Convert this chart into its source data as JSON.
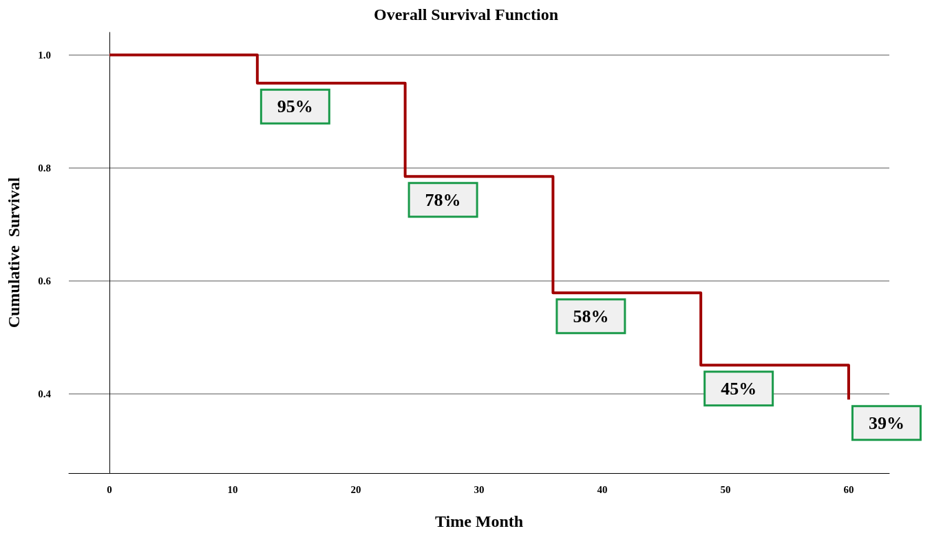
{
  "chart_data": {
    "type": "step",
    "title": "Overall Survival Function",
    "xlabel": "Time Month",
    "ylabel": "Cumulative  Survival",
    "x": [
      0,
      12,
      24,
      36,
      48,
      60
    ],
    "series": [
      {
        "color": "#a00000",
        "values": [
          1.0,
          0.95,
          0.785,
          0.579,
          0.451,
          0.39
        ],
        "value_labels": [
          null,
          "95%",
          "78%",
          "58%",
          "45%",
          "39%"
        ]
      }
    ],
    "xlim": [
      -3.3,
      63.3
    ],
    "xticks": [
      0,
      10,
      20,
      30,
      40,
      50,
      60
    ],
    "ylim": [
      0.26,
      1.04
    ],
    "yticks": [
      {
        "value": 0.4,
        "label": "0.4"
      },
      {
        "value": 0.6,
        "label": "0.6"
      },
      {
        "value": 0.8,
        "label": "0.8"
      },
      {
        "value": 1.0,
        "label": "1.0"
      }
    ],
    "grid": "y"
  }
}
